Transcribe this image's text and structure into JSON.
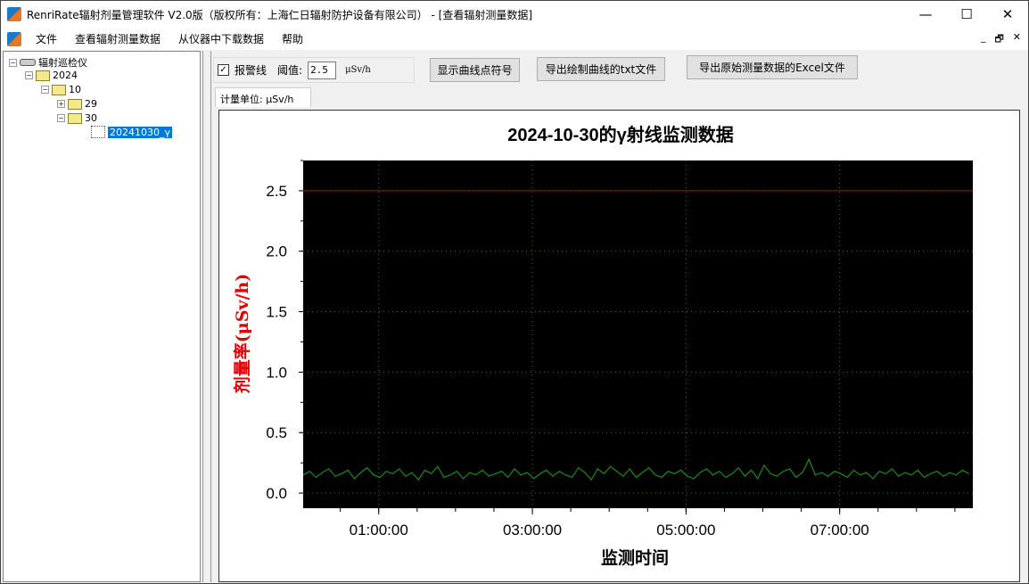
{
  "window": {
    "title": "RenriRate辐射剂量管理软件 V2.0版（版权所有：上海仁日辐射防护设备有限公司） - [查看辐射测量数据]",
    "minimize": "—",
    "maximize": "☐",
    "close": "✕"
  },
  "menu": {
    "items": [
      "文件",
      "查看辐射测量数据",
      "从仪器中下载数据",
      "帮助"
    ],
    "mdi": [
      "_",
      "🗗",
      "✕"
    ]
  },
  "tree": {
    "root": "辐射巡检仪",
    "year": "2024",
    "month": "10",
    "day29": "29",
    "day30": "30",
    "file": "20241030_γ"
  },
  "toolbar": {
    "alarm_label": "报警线",
    "alarm_checked": true,
    "threshold_label": "阈值:",
    "threshold_value": "2.5",
    "threshold_unit": "μSv/h",
    "show_symbols": "显示曲线点符号",
    "export_txt": "导出绘制曲线的txt文件",
    "export_excel": "导出原始测量数据的Excel文件"
  },
  "tab": {
    "label": "计量单位: μSv/h"
  },
  "colors": {
    "plot_bg": "#000000",
    "series": "#1a8a1a",
    "alarm_line": "#cc0000",
    "ylabel": "#dd0000"
  },
  "chart_data": {
    "type": "line",
    "title": "2024-10-30的γ射线监测数据",
    "xlabel": "监测时间",
    "ylabel": "剂量率(μSv/h)",
    "ylim": [
      -0.125,
      2.75
    ],
    "xlim_hours": [
      "00:01:00",
      "08:44:00"
    ],
    "yticks": [
      "0.0",
      "0.5",
      "1.0",
      "1.5",
      "2.0",
      "2.5"
    ],
    "xticks": [
      "01:00:00",
      "03:00:00",
      "05:00:00",
      "07:00:00"
    ],
    "grid": true,
    "alarm_line": 2.5,
    "x_interval_minutes": 5,
    "x_start": "00:01:00",
    "values": [
      0.15,
      0.18,
      0.13,
      0.17,
      0.2,
      0.14,
      0.16,
      0.19,
      0.12,
      0.17,
      0.21,
      0.15,
      0.13,
      0.18,
      0.16,
      0.2,
      0.14,
      0.17,
      0.11,
      0.19,
      0.16,
      0.22,
      0.13,
      0.15,
      0.18,
      0.12,
      0.17,
      0.15,
      0.19,
      0.14,
      0.16,
      0.18,
      0.13,
      0.2,
      0.15,
      0.17,
      0.12,
      0.16,
      0.19,
      0.14,
      0.18,
      0.15,
      0.13,
      0.21,
      0.17,
      0.11,
      0.2,
      0.16,
      0.22,
      0.18,
      0.14,
      0.2,
      0.13,
      0.17,
      0.21,
      0.15,
      0.13,
      0.18,
      0.16,
      0.19,
      0.14,
      0.12,
      0.17,
      0.2,
      0.15,
      0.18,
      0.13,
      0.16,
      0.21,
      0.14,
      0.19,
      0.12,
      0.23,
      0.16,
      0.14,
      0.18,
      0.2,
      0.13,
      0.17,
      0.28,
      0.15,
      0.17,
      0.14,
      0.18,
      0.16,
      0.13,
      0.19,
      0.15,
      0.17,
      0.12,
      0.18,
      0.16,
      0.2,
      0.14,
      0.17,
      0.15,
      0.19,
      0.13,
      0.16,
      0.18,
      0.14,
      0.17,
      0.15,
      0.19,
      0.16
    ]
  }
}
